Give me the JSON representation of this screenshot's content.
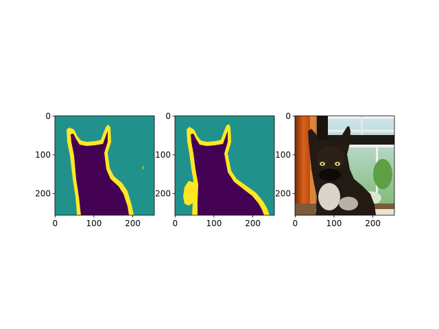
{
  "chart_data": [
    {
      "type": "heatmap",
      "content": "segmentation-mask-prediction",
      "image_size": [
        256,
        256
      ],
      "classes": {
        "foreground": 0,
        "background": 1,
        "boundary": 2
      },
      "xticks": [
        0,
        100,
        200
      ],
      "yticks": [
        0,
        100,
        200
      ],
      "colormap": "viridis",
      "colors": {
        "foreground": "#440154",
        "background": "#21918c",
        "boundary": "#fde725"
      }
    },
    {
      "type": "heatmap",
      "content": "segmentation-mask-ground-truth",
      "image_size": [
        256,
        256
      ],
      "classes": {
        "foreground": 0,
        "background": 1,
        "boundary": 2
      },
      "xticks": [
        0,
        100,
        200
      ],
      "yticks": [
        0,
        100,
        200
      ],
      "colormap": "viridis",
      "colors": {
        "foreground": "#440154",
        "background": "#21918c",
        "boundary": "#fde725"
      }
    },
    {
      "type": "heatmap",
      "content": "photo-siamese-cat",
      "image_size": [
        256,
        256
      ],
      "xticks": [
        0,
        100,
        200
      ],
      "yticks": [
        0,
        100,
        200
      ]
    }
  ]
}
